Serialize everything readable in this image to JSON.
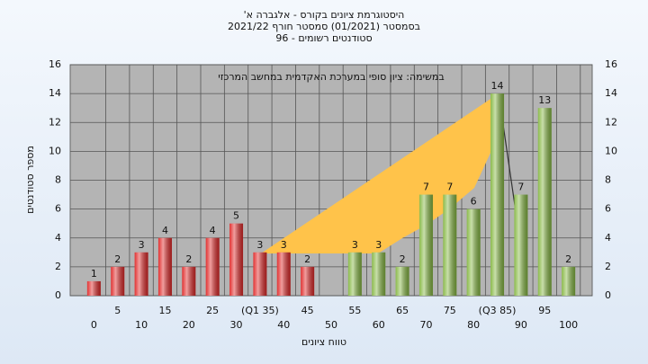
{
  "chart_data": {
    "type": "bar",
    "title": [
      "היסטוגרמת ציונים בקורס - אלגברה א'",
      "בסמסטר (01/2021) סמסטר חורף 2021/22",
      "סטודנטים רשומים - 96"
    ],
    "annotation": "במשימה: ציון סופי במערכת האקדמית במחשב המרכזי",
    "y_label": "מספר סטודנטים",
    "x_label": "טווח ציונים",
    "categories": [
      "0",
      "5",
      "10",
      "15",
      "20",
      "25",
      "30",
      "(Q1 35)",
      "40",
      "45",
      "50",
      "55",
      "60",
      "65",
      "70",
      "75",
      "80",
      "(Q3 85)",
      "90",
      "95",
      "100"
    ],
    "values": [
      1,
      2,
      3,
      4,
      2,
      4,
      5,
      3,
      3,
      2,
      0,
      3,
      3,
      2,
      7,
      7,
      6,
      14,
      7,
      13,
      2
    ],
    "bar_colors": [
      "#e02828",
      "#e02828",
      "#e02828",
      "#e02828",
      "#e02828",
      "#e02828",
      "#e02828",
      "#e02828",
      "#e02828",
      "#e02828",
      "#e02828",
      "#86b843",
      "#86b843",
      "#86b843",
      "#86b843",
      "#86b843",
      "#86b843",
      "#86b843",
      "#86b843",
      "#86b843",
      "#86b843"
    ],
    "ylim": [
      0,
      16
    ],
    "yticks": [
      0,
      2,
      4,
      6,
      8,
      10,
      12,
      14,
      16
    ],
    "grid": true
  }
}
